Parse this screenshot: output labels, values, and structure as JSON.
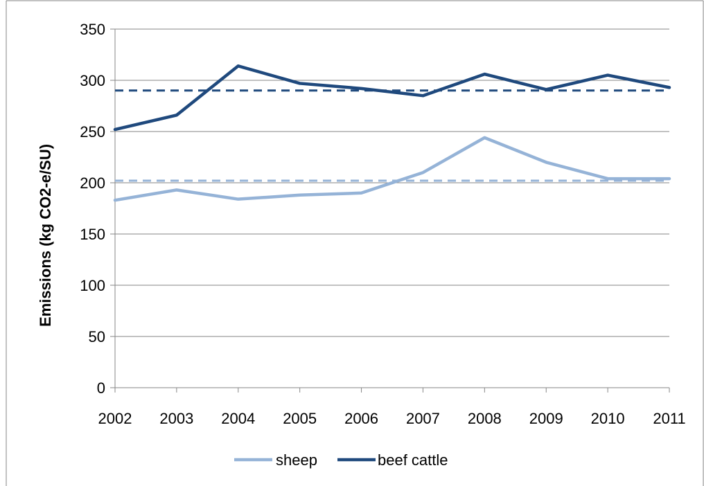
{
  "chart_data": {
    "type": "line",
    "title": "",
    "xlabel": "",
    "ylabel": "Emissions (kg CO2-e/SU)",
    "x": [
      "2002",
      "2003",
      "2004",
      "2005",
      "2006",
      "2007",
      "2008",
      "2009",
      "2010",
      "2011"
    ],
    "ylim": [
      0,
      350
    ],
    "yticks": [
      "0",
      "50",
      "100",
      "150",
      "200",
      "250",
      "300",
      "350"
    ],
    "grid": true,
    "legend_position": "bottom",
    "series": [
      {
        "name": "sheep",
        "color": "#95b3d7",
        "values": [
          183,
          193,
          184,
          188,
          190,
          210,
          244,
          220,
          204,
          204
        ]
      },
      {
        "name": "beef cattle",
        "color": "#1f497d",
        "values": [
          252,
          266,
          314,
          297,
          292,
          285,
          306,
          291,
          305,
          293
        ]
      }
    ],
    "reference_lines": [
      {
        "series": "sheep",
        "style": "dashed",
        "value": 202,
        "color": "#95b3d7"
      },
      {
        "series": "beef cattle",
        "style": "dashed",
        "value": 290,
        "color": "#1f497d"
      }
    ]
  }
}
